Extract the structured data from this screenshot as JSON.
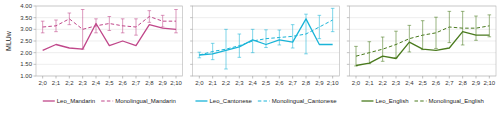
{
  "chart_data": [
    {
      "type": "line",
      "categories": [
        "2;0",
        "2;1",
        "2;2",
        "2;3",
        "2;4",
        "2;5",
        "2;6",
        "2;7",
        "2;8",
        "2;9",
        "2;10"
      ],
      "series": [
        {
          "name": "Leo_Mandarin",
          "color": "#c0478a",
          "line_style": "solid",
          "values": [
            2.1,
            2.35,
            2.2,
            2.15,
            3.25,
            2.3,
            2.5,
            2.3,
            3.2,
            3.05,
            3.0
          ]
        },
        {
          "name": "Monolingual_Mandarin",
          "color": "#c0478a",
          "line_style": "dashed",
          "values": [
            3.1,
            3.15,
            3.45,
            3.0,
            3.15,
            3.25,
            3.15,
            3.1,
            3.55,
            3.35,
            3.35
          ],
          "errors": [
            0.25,
            0.25,
            0.25,
            0.85,
            0.3,
            0.3,
            0.3,
            0.35,
            0.25,
            0.25,
            0.5
          ]
        }
      ],
      "y_label": "MLUw",
      "ylim": [
        1.0,
        4.0
      ],
      "yticks": [
        {
          "value": 1.0,
          "label": "1.00"
        },
        {
          "value": 1.5,
          "label": "1.50"
        },
        {
          "value": 2.0,
          "label": "2.00"
        },
        {
          "value": 2.5,
          "label": "2.50"
        },
        {
          "value": 3.0,
          "label": "3.00"
        },
        {
          "value": 3.5,
          "label": "3.50"
        },
        {
          "value": 4.0,
          "label": "4.00"
        }
      ],
      "grid": true,
      "legend": "bottom"
    },
    {
      "type": "line",
      "categories": [
        "2;0",
        "2;1",
        "2;2",
        "2;3",
        "2;4",
        "2;5",
        "2;6",
        "2;7",
        "2;8",
        "2;9",
        "2;10"
      ],
      "series": [
        {
          "name": "Leo_Cantonese",
          "color": "#1ab4d8",
          "line_style": "solid",
          "values": [
            1.9,
            1.95,
            2.1,
            2.25,
            2.55,
            2.35,
            2.55,
            2.45,
            3.45,
            2.35,
            2.35
          ]
        },
        {
          "name": "Monolingual_Cantonese",
          "color": "#1ab4d8",
          "line_style": "dashed",
          "values": [
            1.9,
            2.05,
            2.15,
            2.3,
            2.5,
            2.6,
            2.65,
            2.7,
            2.8,
            3.1,
            3.4
          ],
          "errors": [
            0.12,
            0.35,
            0.85,
            0.5,
            0.5,
            0.38,
            0.32,
            0.5,
            0.85,
            0.5,
            0.5
          ]
        }
      ],
      "ylim": [
        1.0,
        4.0
      ],
      "yticks": [
        1.0,
        1.5,
        2.0,
        2.5,
        3.0,
        3.5,
        4.0
      ],
      "tick_labels": "x",
      "grid": true,
      "legend": "bottom"
    },
    {
      "type": "line",
      "categories": [
        "2;0",
        "2;1",
        "2;2",
        "2;3",
        "2;4",
        "2;5",
        "2;6",
        "2;7",
        "2;8",
        "2;9",
        "2;10"
      ],
      "series": [
        {
          "name": "Leo_English",
          "color": "#4a7a1e",
          "line_style": "solid",
          "values": [
            1.45,
            1.55,
            1.85,
            1.75,
            2.45,
            2.15,
            2.1,
            2.2,
            2.9,
            2.75,
            2.75
          ]
        },
        {
          "name": "Monolingual_English",
          "color": "#4a7a1e",
          "line_style": "dashed",
          "values": [
            1.85,
            2.0,
            2.15,
            2.35,
            2.6,
            2.75,
            2.85,
            3.1,
            3.05,
            3.05,
            3.15
          ],
          "errors": [
            0.42,
            0.47,
            0.52,
            0.57,
            0.57,
            0.62,
            0.67,
            0.67,
            0.72,
            0.52,
            0.47
          ]
        }
      ],
      "ylim": [
        1.0,
        4.0
      ],
      "yticks": [
        1.0,
        1.5,
        2.0,
        2.5,
        3.0,
        3.5,
        4.0
      ],
      "tick_labels": "x",
      "grid": true,
      "legend": "bottom"
    }
  ]
}
